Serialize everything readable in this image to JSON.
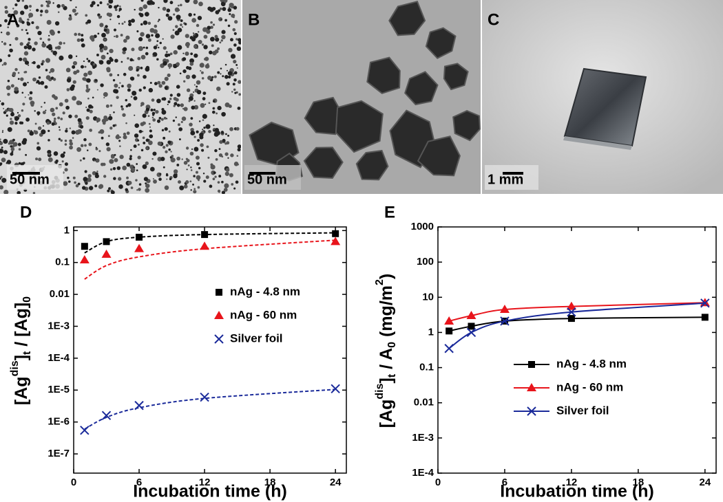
{
  "panels": [
    {
      "label": "A",
      "scale_bar": "50 nm"
    },
    {
      "label": "B",
      "scale_bar": "50 nm"
    },
    {
      "label": "C",
      "scale_bar": "1 mm"
    }
  ],
  "chart_data": [
    {
      "type": "scatter",
      "panel_label": "D",
      "xlabel": "Incubation time (h)",
      "ylabel_parts": [
        "[Ag",
        "dis",
        "]",
        "t",
        " / [Ag]",
        "0"
      ],
      "xlim": [
        0,
        25
      ],
      "xticks": [
        0,
        6,
        12,
        18,
        24
      ],
      "ylim": [
        2.5e-08,
        1.3
      ],
      "log_y": true,
      "yticks": [
        1,
        0.1,
        0.01,
        {
          "value": 0.001,
          "label": "1E-3"
        },
        {
          "value": 0.0001,
          "label": "1E-4"
        },
        {
          "value": 1e-05,
          "label": "1E-5"
        },
        {
          "value": 1e-06,
          "label": "1E-6"
        },
        {
          "value": 1e-07,
          "label": "1E-7"
        }
      ],
      "legend": "right",
      "x": [
        1,
        3,
        6,
        12,
        24
      ],
      "series": [
        {
          "name": "nAg - 4.8 nm",
          "color": "#000000",
          "marker": "square",
          "values": [
            0.32,
            0.45,
            0.62,
            0.75,
            0.8
          ],
          "fit": [
            0.2,
            0.45,
            0.62,
            0.75,
            0.85
          ]
        },
        {
          "name": "nAg - 60 nm",
          "color": "#e8141b",
          "marker": "triangle",
          "values": [
            0.12,
            0.18,
            0.27,
            0.32,
            0.45
          ],
          "fit": [
            0.03,
            0.08,
            0.15,
            0.27,
            0.5
          ]
        },
        {
          "name": "Silver foil",
          "color": "#1a2a9a",
          "marker": "x",
          "values": [
            5.5e-07,
            1.6e-06,
            3.3e-06,
            6e-06,
            1.1e-05
          ],
          "fit": [
            6e-07,
            1.4e-06,
            2.8e-06,
            5.5e-06,
            1.05e-05
          ]
        }
      ]
    },
    {
      "type": "line",
      "panel_label": "E",
      "xlabel": "Incubation time (h)",
      "ylabel_parts": [
        "[Ag",
        "dis",
        "]",
        "t",
        " / A",
        "0",
        "  (mg/m",
        "2",
        ")"
      ],
      "xlim": [
        0,
        25
      ],
      "xticks": [
        0,
        6,
        12,
        18,
        24
      ],
      "ylim": [
        0.0001,
        1000
      ],
      "log_y": true,
      "yticks": [
        1000,
        100,
        10,
        1,
        0.1,
        0.01,
        {
          "value": 0.001,
          "label": "1E-3"
        },
        {
          "value": 0.0001,
          "label": "1E-4"
        }
      ],
      "legend": "lower right",
      "x": [
        1,
        3,
        6,
        12,
        24
      ],
      "series": [
        {
          "name": "nAg - 4.8 nm",
          "color": "#000000",
          "marker": "square",
          "values": [
            1.1,
            1.5,
            2.1,
            2.5,
            2.7
          ]
        },
        {
          "name": "nAg - 60 nm",
          "color": "#e8141b",
          "marker": "triangle",
          "values": [
            2.1,
            3.0,
            4.5,
            5.5,
            7.0
          ]
        },
        {
          "name": "Silver foil",
          "color": "#1a2a9a",
          "marker": "x",
          "values": [
            0.35,
            1.0,
            2.1,
            3.8,
            6.8
          ]
        }
      ]
    }
  ]
}
